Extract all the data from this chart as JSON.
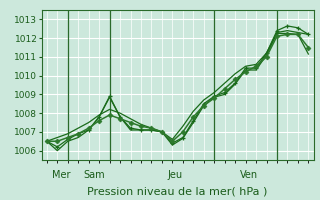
{
  "xlabel": "Pression niveau de la mer( hPa )",
  "bg_color": "#cce8dc",
  "grid_color": "#ffffff",
  "line_color_dark": "#1a6b1a",
  "line_color_mid": "#2d7a2d",
  "ylim": [
    1005.5,
    1013.5
  ],
  "yticks": [
    1006,
    1007,
    1008,
    1009,
    1010,
    1011,
    1012,
    1013
  ],
  "day_positions": [
    0.5,
    3.5,
    11.5,
    18.5
  ],
  "day_labels": [
    "Mer",
    "Sam",
    "Jeu",
    "Ven"
  ],
  "vline_x": [
    2,
    6,
    16,
    22
  ],
  "xlim": [
    -0.5,
    25.5
  ],
  "s1_x": [
    0,
    1,
    2,
    3,
    4,
    5,
    6,
    7,
    8,
    9,
    10,
    11,
    12,
    13,
    14,
    15,
    16,
    17,
    18,
    19,
    20,
    21,
    22,
    23,
    24,
    25
  ],
  "s1_y": [
    1006.5,
    1006.0,
    1006.5,
    1006.7,
    1007.1,
    1007.8,
    1008.85,
    1007.8,
    1007.1,
    1007.1,
    1007.1,
    1007.0,
    1006.3,
    1006.65,
    1007.5,
    1008.4,
    1008.85,
    1009.0,
    1009.55,
    1010.3,
    1010.3,
    1011.1,
    1012.25,
    1012.25,
    1012.2,
    1011.15
  ],
  "s2_x": [
    0,
    1,
    2,
    3,
    4,
    5,
    6,
    7,
    8,
    9,
    10,
    11,
    12,
    13,
    14,
    15,
    16,
    17,
    18,
    19,
    20,
    21,
    22,
    23,
    24,
    25
  ],
  "s2_y": [
    1006.5,
    1006.2,
    1006.6,
    1006.9,
    1007.1,
    1007.8,
    1008.9,
    1007.8,
    1007.2,
    1007.1,
    1007.1,
    1007.0,
    1006.4,
    1006.7,
    1007.6,
    1008.5,
    1008.9,
    1009.1,
    1009.6,
    1010.4,
    1010.4,
    1011.2,
    1012.4,
    1012.65,
    1012.55,
    1012.2
  ],
  "s3_x": [
    0,
    1,
    2,
    3,
    4,
    5,
    6,
    7,
    8,
    9,
    10,
    11,
    12,
    13,
    14,
    15,
    16,
    17,
    18,
    19,
    20,
    21,
    22,
    23,
    24,
    25
  ],
  "s3_y": [
    1006.5,
    1006.5,
    1006.7,
    1006.9,
    1007.2,
    1007.6,
    1007.9,
    1007.7,
    1007.5,
    1007.3,
    1007.2,
    1007.0,
    1006.5,
    1007.0,
    1007.8,
    1008.4,
    1008.8,
    1009.3,
    1009.8,
    1010.2,
    1010.5,
    1011.0,
    1012.1,
    1012.2,
    1012.2,
    1011.5
  ],
  "s4_x": [
    0,
    2,
    3,
    4,
    5,
    6,
    7,
    8,
    9,
    10,
    11,
    12,
    13,
    14,
    15,
    16,
    17,
    18,
    19,
    20,
    21,
    22,
    23,
    24,
    25
  ],
  "s4_y": [
    1006.5,
    1006.9,
    1007.2,
    1007.5,
    1007.9,
    1008.2,
    1008.0,
    1007.7,
    1007.4,
    1007.2,
    1007.0,
    1006.6,
    1007.3,
    1008.1,
    1008.7,
    1009.1,
    1009.6,
    1010.1,
    1010.5,
    1010.6,
    1011.2,
    1012.3,
    1012.4,
    1012.3,
    1012.2
  ]
}
